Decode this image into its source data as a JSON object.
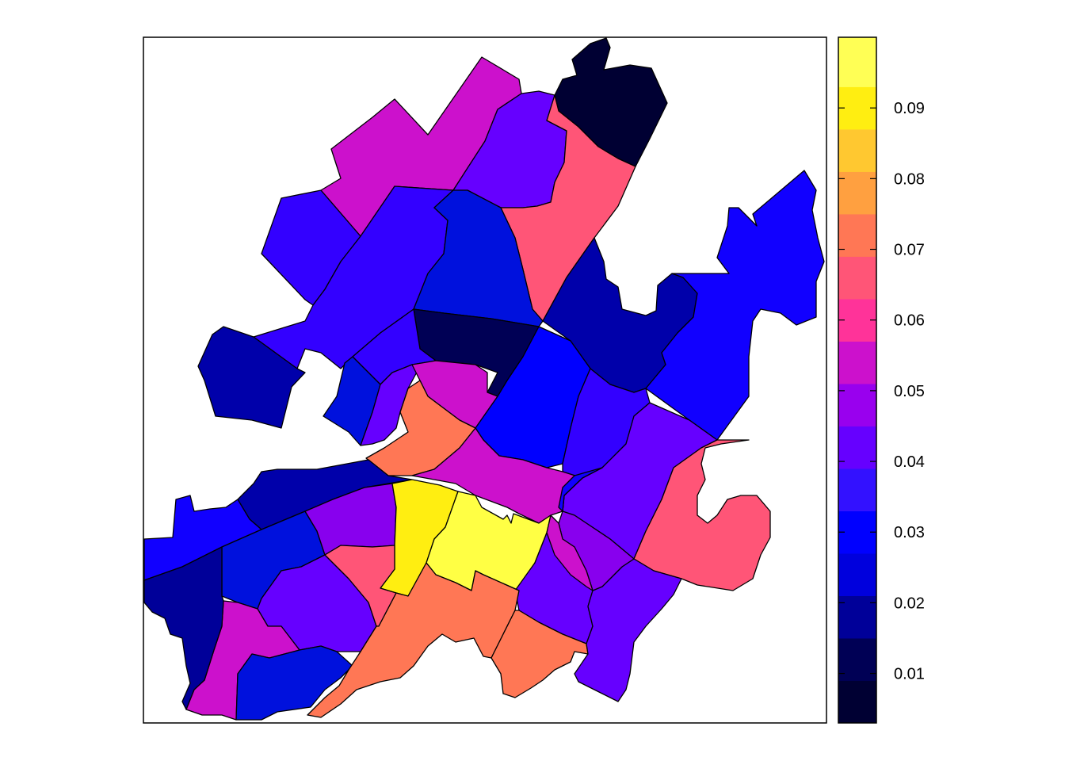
{
  "map": {
    "type": "choropleth",
    "regions": [
      {
        "id": "r01",
        "color": "#000033"
      },
      {
        "id": "r02",
        "color": "#CC11CC"
      },
      {
        "id": "r03",
        "color": "#6600FF"
      },
      {
        "id": "r04",
        "color": "#FF5577"
      },
      {
        "id": "r05",
        "color": "#3300FF"
      },
      {
        "id": "r06",
        "color": "#3300FF"
      },
      {
        "id": "r07",
        "color": "#0011DD"
      },
      {
        "id": "r08",
        "color": "#000055"
      },
      {
        "id": "r09",
        "color": "#0000AA"
      },
      {
        "id": "r10",
        "color": "#0000AA"
      },
      {
        "id": "r11",
        "color": "#1100FF"
      },
      {
        "id": "r12",
        "color": "#3300FF"
      },
      {
        "id": "r13",
        "color": "#0011DD"
      },
      {
        "id": "r14",
        "color": "#6600FF"
      },
      {
        "id": "r15",
        "color": "#CC11CC"
      },
      {
        "id": "r16",
        "color": "#FF7755"
      },
      {
        "id": "r17",
        "color": "#0000FF"
      },
      {
        "id": "r18",
        "color": "#3300FF"
      },
      {
        "id": "r19",
        "color": "#6600FF"
      },
      {
        "id": "r20",
        "color": "#FF5577"
      },
      {
        "id": "r21",
        "color": "#CC11CC"
      },
      {
        "id": "r22",
        "color": "#0000AA"
      },
      {
        "id": "r23",
        "color": "#1100FF"
      },
      {
        "id": "r24",
        "color": "#0011DD"
      },
      {
        "id": "r25",
        "color": "#8800EE"
      },
      {
        "id": "r26",
        "color": "#FFEE11"
      },
      {
        "id": "r27",
        "color": "#FFFF44"
      },
      {
        "id": "r28",
        "color": "#6600FF"
      },
      {
        "id": "r29",
        "color": "#CC11CC"
      },
      {
        "id": "r30",
        "color": "#000099"
      },
      {
        "id": "r31",
        "color": "#0011DD"
      },
      {
        "id": "r32",
        "color": "#6600FF"
      },
      {
        "id": "r33",
        "color": "#FF5577"
      },
      {
        "id": "r34",
        "color": "#FF7755"
      },
      {
        "id": "r35",
        "color": "#FF7755"
      },
      {
        "id": "r36",
        "color": "#6600FF"
      },
      {
        "id": "r37",
        "color": "#8800EE"
      },
      {
        "id": "r38",
        "color": "#CC11CC"
      },
      {
        "id": "r39",
        "color": "#1100FF"
      }
    ]
  },
  "legend": {
    "ticks": [
      "0.01",
      "0.02",
      "0.03",
      "0.04",
      "0.05",
      "0.06",
      "0.07",
      "0.08",
      "0.09"
    ],
    "range": [
      0.003,
      0.1
    ],
    "bins": [
      {
        "lo": 0.003,
        "hi": 0.009,
        "color": "#000033"
      },
      {
        "lo": 0.009,
        "hi": 0.015,
        "color": "#000055"
      },
      {
        "lo": 0.015,
        "hi": 0.021,
        "color": "#000099"
      },
      {
        "lo": 0.021,
        "hi": 0.027,
        "color": "#0000DD"
      },
      {
        "lo": 0.027,
        "hi": 0.033,
        "color": "#0000FF"
      },
      {
        "lo": 0.033,
        "hi": 0.039,
        "color": "#3311FF"
      },
      {
        "lo": 0.039,
        "hi": 0.045,
        "color": "#6600FF"
      },
      {
        "lo": 0.045,
        "hi": 0.051,
        "color": "#9900EE"
      },
      {
        "lo": 0.051,
        "hi": 0.057,
        "color": "#CC11CC"
      },
      {
        "lo": 0.057,
        "hi": 0.063,
        "color": "#FF3399"
      },
      {
        "lo": 0.063,
        "hi": 0.069,
        "color": "#FF5577"
      },
      {
        "lo": 0.069,
        "hi": 0.075,
        "color": "#FF7755"
      },
      {
        "lo": 0.075,
        "hi": 0.081,
        "color": "#FFA040"
      },
      {
        "lo": 0.081,
        "hi": 0.087,
        "color": "#FFC830"
      },
      {
        "lo": 0.087,
        "hi": 0.093,
        "color": "#FFEE11"
      },
      {
        "lo": 0.093,
        "hi": 0.1,
        "color": "#FFFF55"
      }
    ]
  }
}
